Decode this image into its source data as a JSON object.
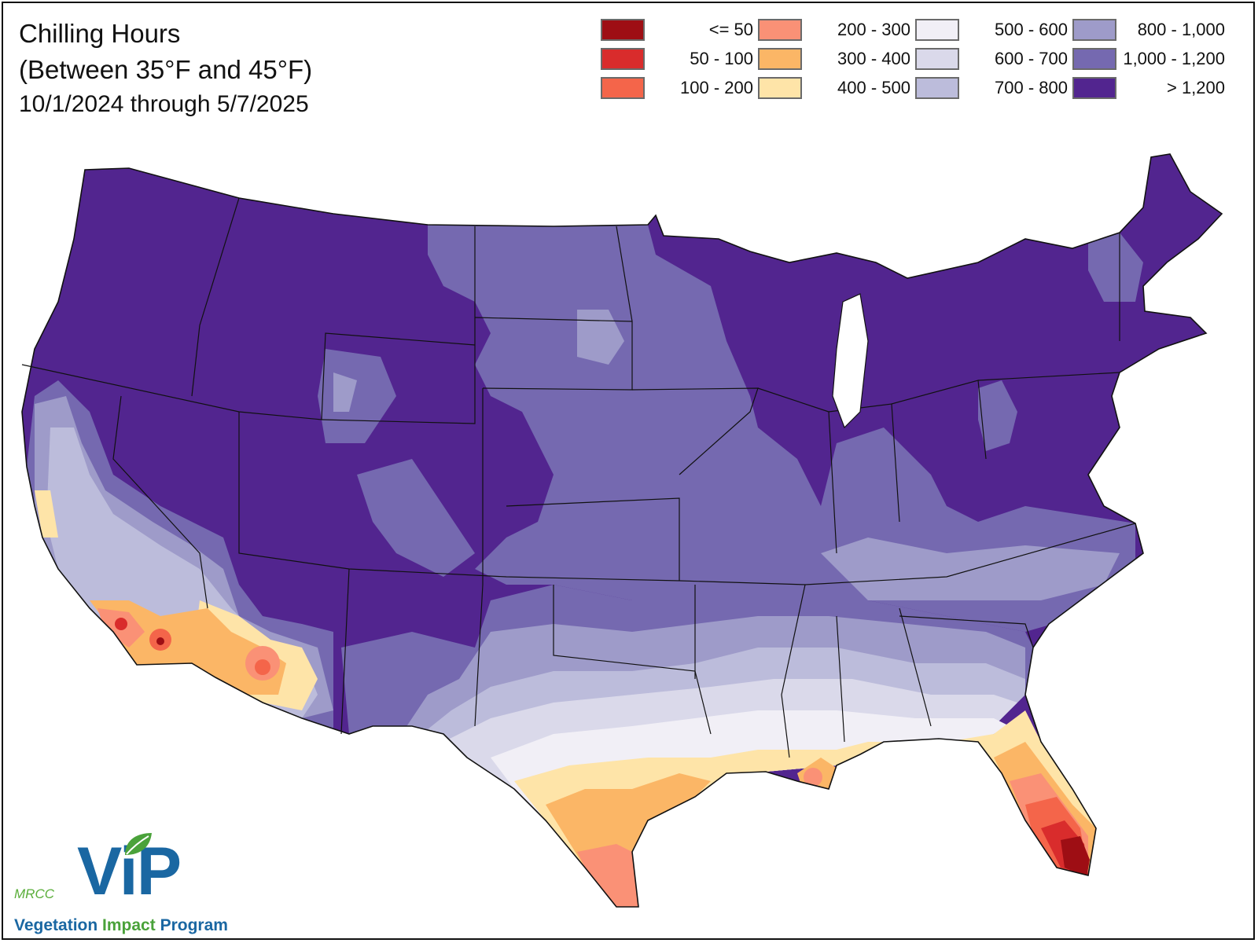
{
  "title": {
    "line1": "Chilling Hours",
    "line2": "(Between 35°F and 45°F)",
    "date_range": "10/1/2024 through 5/7/2025"
  },
  "legend": [
    {
      "label": "<= 50",
      "color": "#9e0e14"
    },
    {
      "label": "50 - 100",
      "color": "#d92c2c"
    },
    {
      "label": "100 - 200",
      "color": "#f4654a"
    },
    {
      "label": "200 - 300",
      "color": "#fa9176"
    },
    {
      "label": "300 - 400",
      "color": "#fbb666"
    },
    {
      "label": "400 - 500",
      "color": "#fee4a8"
    },
    {
      "label": "500 - 600",
      "color": "#f1eff6"
    },
    {
      "label": "600 - 700",
      "color": "#dad9ea"
    },
    {
      "label": "700 - 800",
      "color": "#bcbcdb"
    },
    {
      "label": "800 - 1,000",
      "color": "#9e9bc9"
    },
    {
      "label": "1,000 - 1,200",
      "color": "#7569b0"
    },
    {
      "label": "> 1,200",
      "color": "#52258f"
    }
  ],
  "logo": {
    "org": "MRCC",
    "wordmark": "ViP",
    "tagline_1": "Vegetation",
    "tagline_2": "Impact",
    "tagline_3": "Program",
    "brand_blue": "#1a67a2",
    "brand_green": "#4aa23a"
  }
}
